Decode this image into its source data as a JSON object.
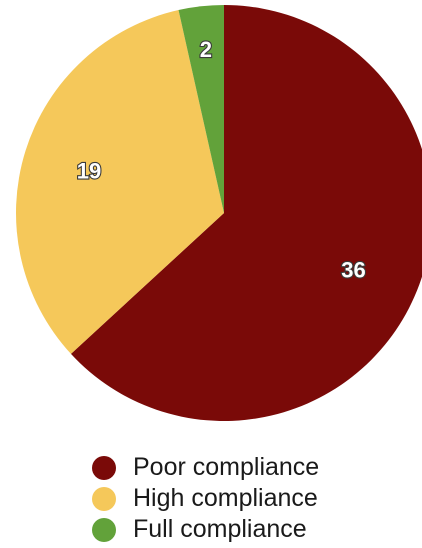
{
  "chart_data": {
    "type": "pie",
    "title": "",
    "slices": [
      {
        "label": "Poor compliance",
        "value": 36,
        "color": "#7a0a08"
      },
      {
        "label": "High compliance",
        "value": 19,
        "color": "#f5c85a"
      },
      {
        "label": "Full compliance",
        "value": 2,
        "color": "#62a23a"
      }
    ],
    "data_labels": [
      "36",
      "19",
      "2"
    ],
    "legend": {
      "placement": "bottom",
      "entries": [
        "Poor compliance",
        "High compliance",
        "Full compliance"
      ]
    }
  }
}
